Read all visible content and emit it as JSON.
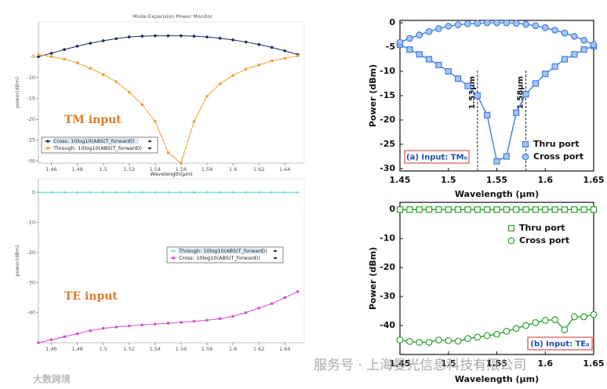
{
  "chart_data": [
    {
      "type": "line",
      "title": "Mode Expansion Power Monitor",
      "xlabel": "Wavelength(μm)",
      "ylabel": "power(dBm)",
      "xlim": [
        1.45,
        1.655
      ],
      "ylim": [
        -30.5,
        3.3
      ],
      "xticks": [
        1.46,
        1.48,
        1.5,
        1.52,
        1.54,
        1.56,
        1.58,
        1.6,
        1.62,
        1.64
      ],
      "yticks": [
        -5,
        -10,
        -15,
        -20,
        -25,
        -30
      ],
      "x": [
        1.45,
        1.46,
        1.47,
        1.48,
        1.49,
        1.5,
        1.51,
        1.52,
        1.53,
        1.54,
        1.55,
        1.56,
        1.57,
        1.58,
        1.59,
        1.6,
        1.61,
        1.62,
        1.63,
        1.64,
        1.65
      ],
      "series": [
        {
          "name": "Cross: 10log10(ABS(T_forward))",
          "color": "#1a2a5e",
          "marker": "dot",
          "values": [
            -5.0,
            -4.2,
            -3.3,
            -2.5,
            -1.8,
            -1.2,
            -0.7,
            -0.3,
            -0.1,
            0,
            0,
            0,
            -0.1,
            -0.3,
            -0.6,
            -1.0,
            -1.5,
            -2.1,
            -2.8,
            -3.6,
            -4.5
          ]
        },
        {
          "name": "Through: 10log10(ABS(T_forward))",
          "color": "#f0a030",
          "marker": "dot",
          "values": [
            -4.5,
            -5.0,
            -5.6,
            -6.5,
            -7.8,
            -9.3,
            -11.0,
            -13.5,
            -16.5,
            -20.5,
            -28.0,
            -30.5,
            -20.5,
            -14.5,
            -11.5,
            -9.5,
            -8.0,
            -7.0,
            -6.0,
            -5.4,
            -4.8
          ]
        }
      ],
      "annotations": [
        "TM input"
      ]
    },
    {
      "type": "line",
      "xlabel": "Wavelength(μm)",
      "ylabel": "power(dBm)",
      "xlim": [
        1.45,
        1.655
      ],
      "ylim": [
        -50,
        4.5
      ],
      "xticks": [
        1.46,
        1.48,
        1.5,
        1.52,
        1.54,
        1.56,
        1.58,
        1.6,
        1.62,
        1.64
      ],
      "yticks": [
        0,
        -10,
        -20,
        -30,
        -40
      ],
      "x": [
        1.45,
        1.46,
        1.47,
        1.48,
        1.49,
        1.5,
        1.51,
        1.52,
        1.53,
        1.54,
        1.55,
        1.56,
        1.57,
        1.58,
        1.59,
        1.6,
        1.61,
        1.62,
        1.63,
        1.64,
        1.65
      ],
      "series": [
        {
          "name": "Through: 10log10(ABS(T_forward))",
          "color": "#40d8c8",
          "marker": "plus",
          "values": [
            0,
            0,
            0,
            0,
            0,
            0,
            0,
            0,
            0,
            0,
            0,
            0,
            0,
            0,
            0,
            0,
            0,
            0,
            0,
            0,
            0
          ]
        },
        {
          "name": "Cross: 10log10(ABS(T_forward))",
          "color": "#d050d0",
          "marker": "dot",
          "values": [
            -50,
            -49,
            -48,
            -47,
            -46,
            -45.2,
            -44.8,
            -44.4,
            -44.1,
            -43.8,
            -43.5,
            -43.2,
            -42.9,
            -42.5,
            -42,
            -41.2,
            -40,
            -38.5,
            -37,
            -35,
            -33
          ]
        }
      ],
      "annotations": [
        "TE input"
      ]
    },
    {
      "type": "line",
      "xlabel": "Wavelength (μm)",
      "ylabel": "Power (dBm)",
      "xlim": [
        1.45,
        1.65
      ],
      "ylim": [
        -30.5,
        0.5
      ],
      "xticks": [
        1.45,
        1.5,
        1.55,
        1.6,
        1.65
      ],
      "yticks": [
        0,
        -5,
        -10,
        -15,
        -20,
        -25,
        -30
      ],
      "x": [
        1.45,
        1.46,
        1.47,
        1.48,
        1.49,
        1.5,
        1.51,
        1.52,
        1.53,
        1.54,
        1.55,
        1.56,
        1.57,
        1.58,
        1.59,
        1.6,
        1.61,
        1.62,
        1.63,
        1.64,
        1.65
      ],
      "series": [
        {
          "name": "Thru port",
          "color": "#3f7fe0",
          "fill": "#a9c4f2",
          "marker": "square",
          "values": [
            -4.5,
            -5.5,
            -6.5,
            -7.5,
            -8.7,
            -10,
            -11.5,
            -13,
            -15,
            -19,
            -28.5,
            -27.5,
            -18.5,
            -14.7,
            -12.5,
            -10.5,
            -9,
            -7.5,
            -6.5,
            -5.5,
            -4.8
          ]
        },
        {
          "name": "Cross port",
          "color": "#3f7fe0",
          "fill": "#a9c4f2",
          "marker": "circle",
          "values": [
            -4,
            -3.2,
            -2.5,
            -1.8,
            -1.2,
            -0.7,
            -0.4,
            -0.2,
            -0.1,
            0,
            0,
            0,
            -0.1,
            -0.3,
            -0.6,
            -1,
            -1.5,
            -2.1,
            -2.8,
            -3.6,
            -4.5
          ]
        }
      ],
      "vlines": [
        {
          "text": "1.53μm",
          "x": 1.53
        },
        {
          "text": "1.58μm",
          "x": 1.58
        }
      ],
      "panel_label": "(a) Input: TM₀"
    },
    {
      "type": "line",
      "xlabel": "Wavelength (μm)",
      "ylabel": "Power (dBm)",
      "xlim": [
        1.45,
        1.65
      ],
      "ylim": [
        -50,
        2.5
      ],
      "xticks": [
        1.45,
        1.5,
        1.55,
        1.6,
        1.65
      ],
      "yticks": [
        0,
        -10,
        -20,
        -30,
        -40
      ],
      "x": [
        1.45,
        1.46,
        1.47,
        1.48,
        1.49,
        1.5,
        1.51,
        1.52,
        1.53,
        1.54,
        1.55,
        1.56,
        1.57,
        1.58,
        1.59,
        1.6,
        1.61,
        1.62,
        1.63,
        1.64,
        1.65
      ],
      "series": [
        {
          "name": "Thru port",
          "color": "#2ea02e",
          "fill": "#ffffff",
          "marker": "square",
          "values": [
            0,
            0,
            0,
            0,
            0,
            0,
            0,
            0,
            0,
            0,
            0,
            0,
            0,
            0,
            0,
            0,
            0,
            0,
            0,
            0,
            0
          ]
        },
        {
          "name": "Cross port",
          "color": "#2ea02e",
          "fill": "#ffffff",
          "marker": "circle",
          "values": [
            -45,
            -45.5,
            -45.8,
            -45.8,
            -45,
            -45.2,
            -45.4,
            -44.5,
            -44,
            -43.5,
            -43,
            -42,
            -41,
            -40,
            -39,
            -38.2,
            -38,
            -41.5,
            -37,
            -37,
            -36.2
          ]
        }
      ],
      "panel_label": "(b) Input: TE₀"
    }
  ],
  "watermark": [
    "大数跨境",
    "服务号 · 上海曼光信息科技有限公司"
  ]
}
